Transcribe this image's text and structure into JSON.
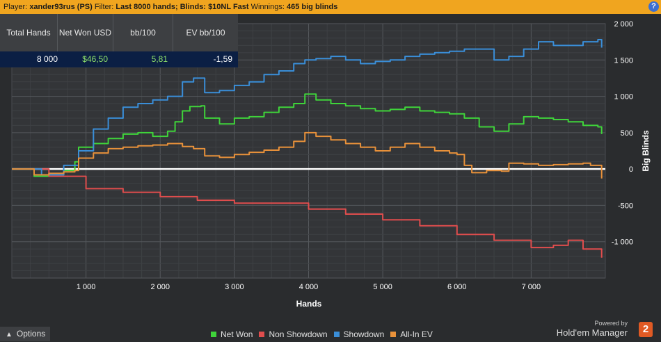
{
  "header": {
    "player_label": "Player:",
    "player_value": "xander93rus (PS)",
    "filter_label": "Filter:",
    "filter_value": "Last 8000 hands; Blinds: $10NL Fast",
    "winnings_label": "Winnings:",
    "winnings_value": "465 big blinds",
    "help_label": "?"
  },
  "stats": {
    "headers": [
      "Total Hands",
      "Net Won USD",
      "bb/100",
      "EV bb/100"
    ],
    "values": [
      "8 000",
      "$46,50",
      "5,81",
      "-1,59"
    ],
    "colors": [
      "#ffffff",
      "#8ee06a",
      "#8ee06a",
      "#ffffff"
    ]
  },
  "chart_data": {
    "type": "line",
    "xlabel": "Hands",
    "ylabel": "Big Blinds",
    "xlim": [
      0,
      8000
    ],
    "ylim": [
      -1500,
      2000
    ],
    "x_ticks": [
      1000,
      2000,
      3000,
      4000,
      5000,
      6000,
      7000
    ],
    "x_tick_labels": [
      "1 000",
      "2 000",
      "3 000",
      "4 000",
      "5 000",
      "6 000",
      "7 000"
    ],
    "y_ticks": [
      2000,
      1500,
      1000,
      500,
      0,
      -500,
      -1000
    ],
    "y_tick_labels": [
      "2 000",
      "1 500",
      "1 000",
      "500",
      "0",
      "-500",
      "-1 000"
    ],
    "grid": true,
    "legend_position": "bottom",
    "series": [
      {
        "name": "Net Won",
        "color": "#3fd43a",
        "x": [
          0,
          300,
          500,
          700,
          850,
          900,
          1100,
          1300,
          1500,
          1700,
          1900,
          2100,
          2200,
          2300,
          2400,
          2550,
          2600,
          2800,
          3000,
          3200,
          3400,
          3600,
          3800,
          3950,
          4100,
          4300,
          4500,
          4700,
          4900,
          5100,
          5300,
          5500,
          5700,
          5900,
          6100,
          6300,
          6500,
          6700,
          6900,
          7100,
          7300,
          7500,
          7700,
          7900,
          7950
        ],
        "y": [
          0,
          -100,
          -80,
          -20,
          100,
          300,
          350,
          420,
          480,
          500,
          450,
          520,
          650,
          800,
          860,
          870,
          700,
          620,
          700,
          720,
          780,
          850,
          900,
          1030,
          950,
          900,
          870,
          830,
          800,
          820,
          850,
          800,
          780,
          760,
          700,
          580,
          520,
          620,
          720,
          700,
          680,
          650,
          600,
          580,
          480
        ]
      },
      {
        "name": "Non Showdown",
        "color": "#e04d4d",
        "x": [
          0,
          500,
          1000,
          1500,
          2000,
          2500,
          3000,
          3500,
          4000,
          4500,
          5000,
          5500,
          6000,
          6500,
          7000,
          7300,
          7500,
          7700,
          7950
        ],
        "y": [
          0,
          -100,
          -270,
          -320,
          -380,
          -430,
          -470,
          -470,
          -550,
          -620,
          -700,
          -780,
          -900,
          -980,
          -1080,
          -1050,
          -980,
          -1100,
          -1220
        ]
      },
      {
        "name": "Showdown",
        "color": "#3a8ed8",
        "x": [
          0,
          400,
          700,
          900,
          1100,
          1300,
          1500,
          1700,
          1900,
          2100,
          2300,
          2450,
          2600,
          2800,
          3000,
          3200,
          3400,
          3600,
          3800,
          3950,
          4100,
          4300,
          4500,
          4700,
          4900,
          5100,
          5300,
          5500,
          5700,
          5900,
          6100,
          6300,
          6500,
          6700,
          6900,
          7100,
          7300,
          7500,
          7700,
          7900,
          7950
        ],
        "y": [
          0,
          -80,
          50,
          250,
          550,
          700,
          850,
          900,
          950,
          1000,
          1200,
          1250,
          1050,
          1080,
          1150,
          1200,
          1300,
          1350,
          1450,
          1500,
          1520,
          1550,
          1500,
          1450,
          1480,
          1500,
          1550,
          1580,
          1600,
          1620,
          1650,
          1650,
          1500,
          1550,
          1650,
          1750,
          1700,
          1700,
          1750,
          1780,
          1670
        ]
      },
      {
        "name": "All-In EV",
        "color": "#e8913a",
        "x": [
          0,
          300,
          500,
          700,
          850,
          900,
          1100,
          1300,
          1500,
          1700,
          1900,
          2100,
          2300,
          2450,
          2600,
          2800,
          3000,
          3200,
          3400,
          3600,
          3800,
          3950,
          4100,
          4300,
          4500,
          4700,
          4900,
          5100,
          5300,
          5500,
          5700,
          5900,
          6000,
          6100,
          6200,
          6400,
          6600,
          6700,
          6900,
          7100,
          7300,
          7500,
          7700,
          7800,
          7950
        ],
        "y": [
          0,
          -80,
          -60,
          -40,
          -20,
          150,
          220,
          280,
          300,
          320,
          330,
          350,
          310,
          280,
          180,
          160,
          200,
          230,
          260,
          300,
          380,
          500,
          450,
          400,
          350,
          300,
          250,
          300,
          350,
          300,
          250,
          220,
          200,
          50,
          -50,
          -20,
          -30,
          80,
          70,
          50,
          60,
          70,
          80,
          50,
          -130
        ]
      }
    ]
  },
  "bottom": {
    "options_label": "Options",
    "options_icon": "chevron-up-icon",
    "powered_by": "Powered by",
    "brand": "Hold'em Manager",
    "brand_logo_text": "2"
  }
}
